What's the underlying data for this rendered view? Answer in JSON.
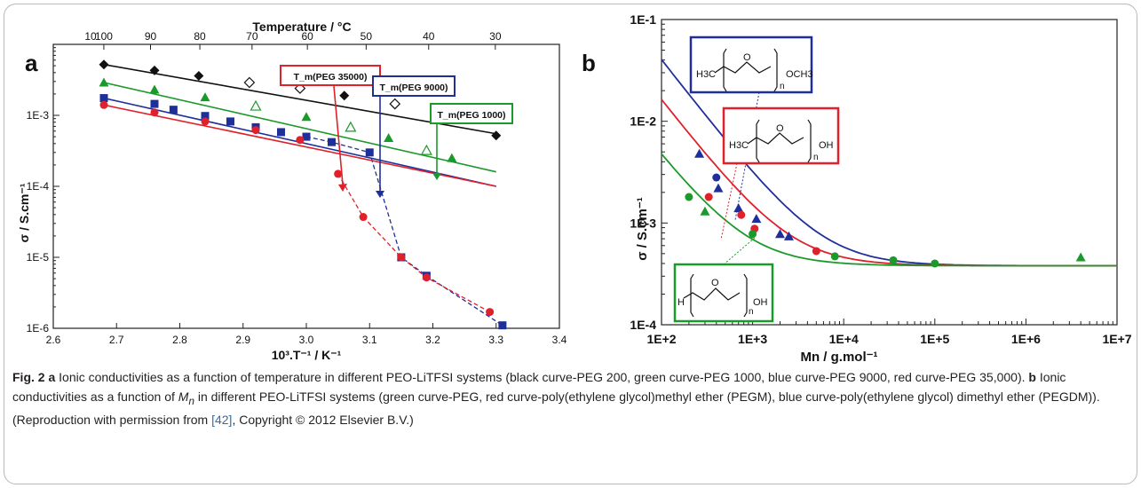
{
  "chart_data": [
    {
      "panel": "a",
      "type": "line",
      "xlabel": "10³.T⁻¹ / K⁻¹",
      "ylabel": "σ / S.cm⁻¹",
      "x2label": "Temperature / °C",
      "yscale": "log",
      "xlim": [
        2.6,
        3.4
      ],
      "ylim": [
        1e-06,
        0.01
      ],
      "xticks": [
        "2.6",
        "2.7",
        "2.8",
        "2.9",
        "3.0",
        "3.1",
        "3.2",
        "3.3",
        "3.4"
      ],
      "yticks": [
        "1E-6",
        "1E-5",
        "1E-4",
        "1E-3"
      ],
      "x2ticks": [
        "10",
        "90",
        "80",
        "70",
        "60",
        "50",
        "40",
        "30",
        "100"
      ],
      "x2ticks_ordered": [
        "100",
        "90",
        "80",
        "70",
        "60",
        "50",
        "40",
        "30"
      ],
      "x2ticks_leftmost": "10",
      "annotations": [
        "T_m(PEG 35000)",
        "T_m(PEG 9000)",
        "T_m(PEG 1000)"
      ],
      "series": [
        {
          "color": "#111111",
          "marker": "diamond",
          "x": [
            2.68,
            2.76,
            2.83,
            2.91,
            2.99,
            3.06,
            3.14,
            3.22,
            3.3
          ],
          "y": [
            0.0052,
            0.0043,
            0.0036,
            0.0029,
            0.0024,
            0.0019,
            0.00145,
            0.0011,
            0.00052
          ],
          "fit_y": [
            0.0052,
            0.00055
          ]
        },
        {
          "color": "#1a9a2a",
          "marker": "triangle",
          "x": [
            2.68,
            2.76,
            2.84,
            2.92,
            3.0,
            3.07,
            3.13,
            3.19,
            3.23
          ],
          "y": [
            0.0029,
            0.0023,
            0.0018,
            0.00135,
            0.00095,
            0.00068,
            0.00048,
            0.00032,
            0.00025
          ],
          "fit_y": [
            0.0029,
            0.00016
          ]
        },
        {
          "color": "#1f2f9a",
          "marker": "square",
          "x": [
            2.68,
            2.76,
            2.79,
            2.84,
            2.88,
            2.92,
            2.96,
            3.0,
            3.04,
            3.1,
            3.15,
            3.19,
            3.31
          ],
          "y": [
            0.00175,
            0.00145,
            0.0012,
            0.00098,
            0.00082,
            0.00068,
            0.00058,
            0.0005,
            0.00042,
            0.0003,
            1e-05,
            5.5e-06,
            1.1e-06
          ],
          "fit_y": [
            0.00175,
            0.0001
          ]
        },
        {
          "color": "#e0202a",
          "marker": "circle",
          "x": [
            2.68,
            2.76,
            2.84,
            2.92,
            2.99,
            3.05,
            3.09,
            3.15,
            3.19,
            3.29
          ],
          "y": [
            0.0014,
            0.0011,
            0.00082,
            0.00062,
            0.00045,
            0.00015,
            3.7e-05,
            1e-05,
            5.2e-06,
            1.7e-06
          ],
          "fit_y": [
            0.0014,
            0.0001
          ]
        }
      ]
    },
    {
      "panel": "b",
      "type": "scatter",
      "xlabel": "Mn / g.mol⁻¹",
      "ylabel": "σ / S.cm⁻¹",
      "xscale": "log",
      "yscale": "log",
      "xlim": [
        100,
        10000000
      ],
      "ylim": [
        0.0001,
        0.1
      ],
      "xticks": [
        "1E+2",
        "1E+3",
        "1E+4",
        "1E+5",
        "1E+6",
        "1E+7"
      ],
      "yticks": [
        "1E-4",
        "1E-3",
        "1E-2",
        "1E-1"
      ],
      "series": [
        {
          "color": "#1f2f9a",
          "marker": "triangle",
          "x": [
            260,
            420,
            700,
            1100,
            2000,
            2500
          ],
          "y": [
            0.0048,
            0.0022,
            0.0014,
            0.0011,
            0.00078,
            0.00074
          ]
        },
        {
          "color": "#1f2f9a",
          "marker": "circle",
          "x": [
            400
          ],
          "y": [
            0.0028
          ]
        },
        {
          "color": "#e0202a",
          "marker": "circle",
          "x": [
            330,
            750,
            1050,
            5000
          ],
          "y": [
            0.0018,
            0.0012,
            0.00088,
            0.00053
          ]
        },
        {
          "color": "#1a9a2a",
          "marker": "circle",
          "x": [
            200,
            1000,
            8000,
            35000,
            100000
          ],
          "y": [
            0.0018,
            0.00078,
            0.00047,
            0.00043,
            0.0004
          ]
        },
        {
          "color": "#1a9a2a",
          "marker": "triangle",
          "x": [
            300,
            4000000
          ],
          "y": [
            0.0013,
            0.00046
          ]
        }
      ]
    }
  ],
  "panel_a_label": "a",
  "panel_b_label": "b",
  "caption": {
    "fig_label": "Fig. 2",
    "a_label": "a",
    "a_text": " Ionic conductivities as a function of temperature in different PEO-LiTFSI systems (black curve-PEG 200, green curve-PEG 1000, blue curve-PEG 9000, red curve-PEG 35,000). ",
    "b_label": "b",
    "b_text_1": " Ionic conductivities as a function of ",
    "b_mn": "M",
    "b_mn_sub": "n",
    "b_text_2": " in different PEO-LiTFSI systems (green curve-PEG, red curve-poly(ethylene glycol)methyl ether (PEGM), blue curve-poly(ethylene glycol) dimethyl ether (PEGDM)). (Reproduction with permission from ",
    "ref": "[42]",
    "tail": ", Copyright © 2012 Elsevier B.V.)"
  },
  "colors": {
    "black": "#111111",
    "green": "#1a9a2a",
    "blue": "#1f2f9a",
    "red": "#e0202a"
  }
}
